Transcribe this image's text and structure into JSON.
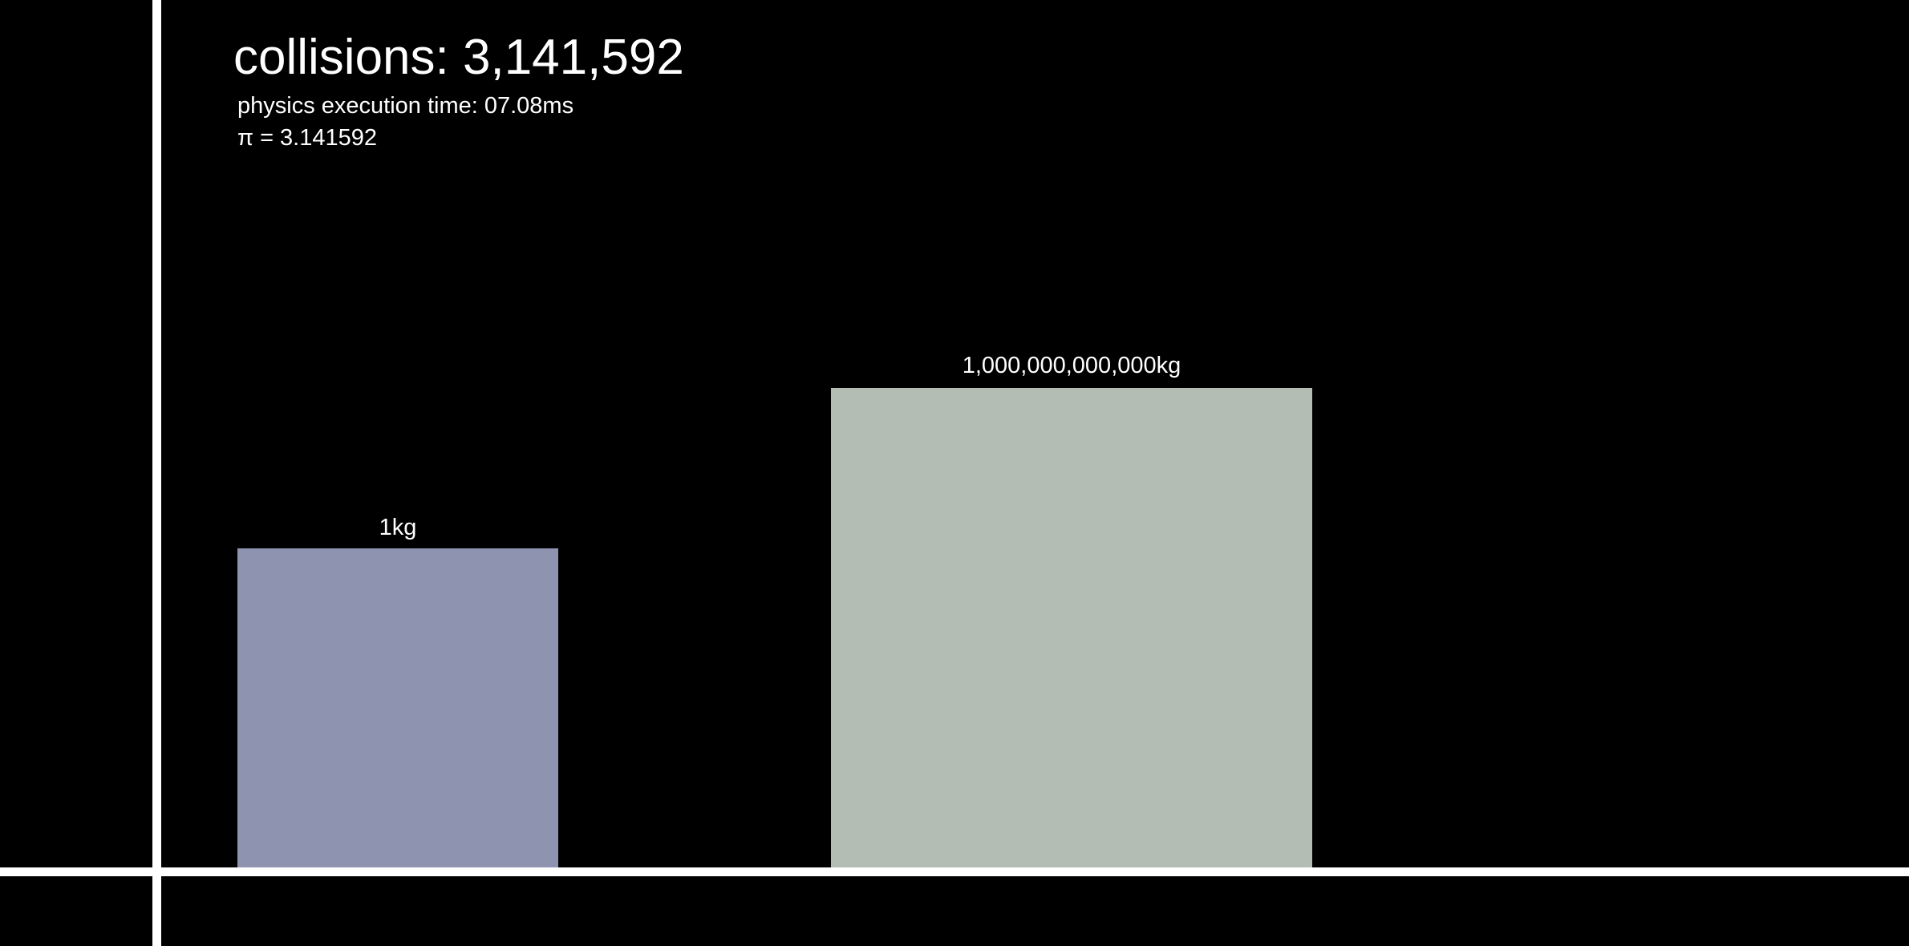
{
  "hud": {
    "collisions_label": "collisions: 3,141,592",
    "exec_time_label": "physics execution time: 07.08ms",
    "pi_label": "π = 3.141592"
  },
  "blocks": {
    "small": {
      "mass_label": "1kg",
      "color": "#8e94b0"
    },
    "large": {
      "mass_label": "1,000,000,000,000kg",
      "color": "#b3bdb4"
    }
  },
  "scene": {
    "background_color": "#000000",
    "wall_color": "#ffffff",
    "floor_color": "#ffffff"
  }
}
